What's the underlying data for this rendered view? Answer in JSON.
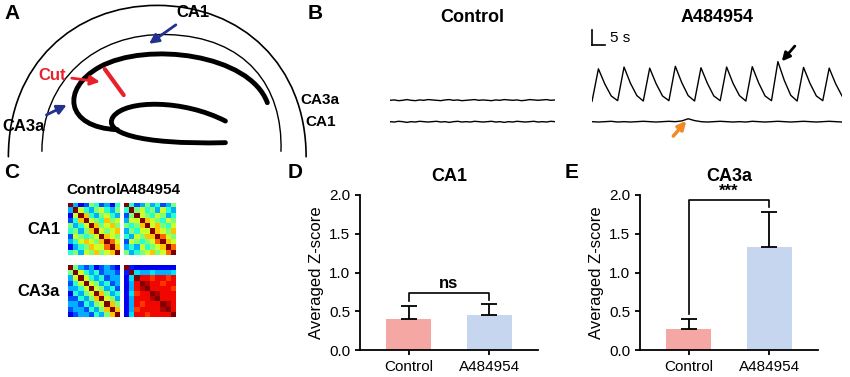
{
  "chart_data": [
    {
      "type": "diagram",
      "label": "A",
      "texts": {
        "cut": "Cut",
        "top_region": "CA1",
        "side_region": "CA3a"
      }
    },
    {
      "type": "line",
      "label": "B",
      "columns": [
        "Control",
        "A484954"
      ],
      "rows": [
        "CA3a",
        "CA1"
      ],
      "x": [
        0,
        2.5,
        5,
        7.5,
        10,
        12.5,
        15,
        17.5,
        20,
        22.5,
        25,
        27.5,
        30,
        32.5,
        35,
        37.5,
        40,
        42.5,
        45,
        47.5,
        50,
        52.5,
        55,
        57.5,
        60,
        62.5,
        65,
        67.5,
        70,
        72.5,
        75,
        77.5,
        80,
        82.5,
        85,
        87.5,
        90,
        92.5,
        95,
        97.5
      ],
      "series": [
        {
          "row": "CA3a",
          "column": "Control",
          "values": [
            0.03,
            0.04,
            0.02,
            0.03,
            0.05,
            0.03,
            0.02,
            0.04,
            0.03,
            0.05,
            0.04,
            0.03,
            0.02,
            0.04,
            0.05,
            0.03,
            0.04,
            0.02,
            0.03,
            0.04,
            0.05,
            0.03,
            0.04,
            0.03,
            0.02,
            0.04,
            0.03,
            0.05,
            0.04,
            0.03,
            0.04,
            0.02,
            0.03,
            0.05,
            0.04,
            0.03,
            0.04,
            0.05,
            0.03,
            0.04
          ]
        },
        {
          "row": "CA3a",
          "column": "A484954",
          "values": [
            0.0,
            0.9,
            0.48,
            0.15,
            0.02,
            0.95,
            0.5,
            0.16,
            0.01,
            0.92,
            0.49,
            0.15,
            0.02,
            0.97,
            0.52,
            0.16,
            0.01,
            0.93,
            0.5,
            0.15,
            0.02,
            0.95,
            0.5,
            0.16,
            0.01,
            0.96,
            0.51,
            0.15,
            0.02,
            1.1,
            0.58,
            0.17,
            0.01,
            0.94,
            0.5,
            0.15,
            0.02,
            0.92,
            0.49,
            0.15
          ]
        },
        {
          "row": "CA1",
          "column": "Control",
          "values": [
            0.02,
            0.01,
            0.03,
            0.02,
            0.0,
            0.02,
            0.01,
            0.03,
            0.02,
            0.01,
            0.02,
            0.03,
            0.01,
            0.02,
            0.0,
            0.02,
            0.03,
            0.01,
            0.02,
            0.01,
            0.03,
            0.02,
            0.01,
            0.02,
            0.03,
            0.01,
            0.02,
            0.0,
            0.02,
            0.01,
            0.03,
            0.02,
            0.01,
            0.02,
            0.03,
            0.01,
            0.02,
            0.01,
            0.03,
            0.02
          ]
        },
        {
          "row": "CA1",
          "column": "A484954",
          "values": [
            0.02,
            0.01,
            0.02,
            0.03,
            0.01,
            0.02,
            0.01,
            0.02,
            0.03,
            0.02,
            0.01,
            0.02,
            0.03,
            0.02,
            0.04,
            0.1,
            0.05,
            0.02,
            0.01,
            0.02,
            0.03,
            0.02,
            0.01,
            0.02,
            0.01,
            0.03,
            0.02,
            0.01,
            0.02,
            0.03,
            0.02,
            0.01,
            0.02,
            0.03,
            0.02,
            0.01,
            0.02,
            0.03,
            0.02,
            0.01
          ]
        }
      ],
      "color": "#000000",
      "xlim": [
        0,
        97.5
      ],
      "ylim": [
        -0.1,
        1.2
      ],
      "tick_labels": false,
      "scale_bar": {
        "value": 5,
        "label": "5 s"
      }
    },
    {
      "type": "heatmap",
      "label": "C",
      "columns": [
        "Control",
        "A484954"
      ],
      "rows": [
        "CA1",
        "CA3a"
      ],
      "color_range": [
        0,
        1
      ],
      "cells": [
        [
          [
            [
              1,
              0.3,
              0.1,
              0.2,
              0.5,
              0.4,
              0.2,
              0.3,
              0.1,
              0.4
            ],
            [
              0.3,
              1,
              0.6,
              0.4,
              0.3,
              0.5,
              0.6,
              0.4,
              0.3,
              0.5
            ],
            [
              0.1,
              0.6,
              1,
              0.7,
              0.4,
              0.3,
              0.5,
              0.6,
              0.4,
              0.3
            ],
            [
              0.2,
              0.4,
              0.7,
              1,
              0.6,
              0.5,
              0.4,
              0.7,
              0.5,
              0.6
            ],
            [
              0.5,
              0.3,
              0.4,
              0.6,
              1,
              0.7,
              0.5,
              0.6,
              0.7,
              0.5
            ],
            [
              0.4,
              0.5,
              0.3,
              0.5,
              0.7,
              1,
              0.6,
              0.5,
              0.6,
              0.7
            ],
            [
              0.2,
              0.6,
              0.5,
              0.4,
              0.5,
              0.6,
              1,
              0.7,
              0.6,
              0.5
            ],
            [
              0.3,
              0.4,
              0.6,
              0.7,
              0.6,
              0.5,
              0.7,
              1,
              0.8,
              0.6
            ],
            [
              0.1,
              0.3,
              0.4,
              0.5,
              0.7,
              0.6,
              0.6,
              0.8,
              1,
              0.7
            ],
            [
              0.4,
              0.5,
              0.3,
              0.6,
              0.5,
              0.7,
              0.5,
              0.6,
              0.7,
              1
            ]
          ],
          [
            [
              1,
              0.4,
              0.2,
              0.3,
              0.5,
              0.3,
              0.4,
              0.2,
              0.3,
              0.5
            ],
            [
              0.4,
              1,
              0.5,
              0.6,
              0.4,
              0.5,
              0.3,
              0.6,
              0.4,
              0.3
            ],
            [
              0.2,
              0.5,
              1,
              0.6,
              0.5,
              0.4,
              0.6,
              0.5,
              0.3,
              0.4
            ],
            [
              0.3,
              0.6,
              0.6,
              1,
              0.7,
              0.6,
              0.5,
              0.4,
              0.6,
              0.5
            ],
            [
              0.5,
              0.4,
              0.5,
              0.7,
              1,
              0.6,
              0.7,
              0.5,
              0.4,
              0.6
            ],
            [
              0.3,
              0.5,
              0.4,
              0.6,
              0.6,
              1,
              0.7,
              0.6,
              0.5,
              0.7
            ],
            [
              0.4,
              0.3,
              0.6,
              0.5,
              0.7,
              0.7,
              1,
              0.8,
              0.6,
              0.5
            ],
            [
              0.2,
              0.6,
              0.5,
              0.4,
              0.5,
              0.6,
              0.8,
              1,
              0.7,
              0.6
            ],
            [
              0.3,
              0.4,
              0.3,
              0.6,
              0.4,
              0.5,
              0.6,
              0.7,
              1,
              0.8
            ],
            [
              0.5,
              0.3,
              0.4,
              0.5,
              0.6,
              0.7,
              0.5,
              0.6,
              0.8,
              1
            ]
          ]
        ],
        [
          [
            [
              1,
              0.5,
              0.3,
              0.2,
              0.3,
              0.1,
              0.2,
              0.3,
              0.2,
              0.1
            ],
            [
              0.5,
              1,
              0.6,
              0.4,
              0.3,
              0.4,
              0.2,
              0.3,
              0.3,
              0.2
            ],
            [
              0.3,
              0.6,
              1,
              0.6,
              0.4,
              0.3,
              0.4,
              0.2,
              0.3,
              0.3
            ],
            [
              0.2,
              0.4,
              0.6,
              1,
              0.6,
              0.5,
              0.3,
              0.4,
              0.2,
              0.3
            ],
            [
              0.3,
              0.3,
              0.4,
              0.6,
              1,
              0.6,
              0.5,
              0.3,
              0.4,
              0.2
            ],
            [
              0.1,
              0.4,
              0.3,
              0.5,
              0.6,
              1,
              0.7,
              0.5,
              0.3,
              0.4
            ],
            [
              0.2,
              0.2,
              0.4,
              0.3,
              0.5,
              0.7,
              1,
              0.6,
              0.5,
              0.3
            ],
            [
              0.3,
              0.3,
              0.2,
              0.4,
              0.3,
              0.5,
              0.6,
              1,
              0.7,
              0.5
            ],
            [
              0.2,
              0.3,
              0.3,
              0.2,
              0.4,
              0.3,
              0.5,
              0.7,
              1,
              0.7
            ],
            [
              0.1,
              0.2,
              0.3,
              0.3,
              0.2,
              0.4,
              0.3,
              0.5,
              0.7,
              1
            ]
          ],
          [
            [
              1,
              0.15,
              0.1,
              0.1,
              0.1,
              0.1,
              0.1,
              0.1,
              0.1,
              0.1
            ],
            [
              0.15,
              1,
              0.35,
              0.3,
              0.3,
              0.35,
              0.3,
              0.3,
              0.3,
              0.35
            ],
            [
              0.1,
              0.35,
              1,
              0.9,
              0.9,
              0.85,
              0.9,
              0.9,
              0.85,
              0.9
            ],
            [
              0.1,
              0.3,
              0.9,
              1,
              0.95,
              0.9,
              0.9,
              0.85,
              0.9,
              0.9
            ],
            [
              0.1,
              0.3,
              0.9,
              0.95,
              1,
              0.9,
              0.9,
              0.9,
              0.9,
              0.85
            ],
            [
              0.1,
              0.35,
              0.85,
              0.9,
              0.9,
              1,
              0.95,
              0.9,
              0.9,
              0.9
            ],
            [
              0.1,
              0.3,
              0.9,
              0.9,
              0.9,
              0.95,
              1,
              0.9,
              0.9,
              0.9
            ],
            [
              0.1,
              0.3,
              0.9,
              0.85,
              0.9,
              0.9,
              0.9,
              1,
              0.95,
              0.9
            ],
            [
              0.1,
              0.3,
              0.85,
              0.9,
              0.9,
              0.9,
              0.9,
              0.95,
              1,
              0.9
            ],
            [
              0.1,
              0.35,
              0.9,
              0.9,
              0.85,
              0.9,
              0.9,
              0.9,
              0.9,
              1
            ]
          ]
        ]
      ]
    },
    {
      "type": "bar",
      "label": "D",
      "title": "CA1",
      "categories": [
        "Control",
        "A484954"
      ],
      "values": [
        0.4,
        0.45
      ],
      "errors": [
        0.17,
        0.14
      ],
      "colors": [
        "#f4a7a3",
        "#c6d6ef"
      ],
      "ylabel": "Averaged Z-score",
      "ylim": [
        0,
        2.0
      ],
      "yticks": [
        {
          "value": 0,
          "label": "0.0"
        },
        {
          "value": 0.5,
          "label": "0.5"
        },
        {
          "value": 1.0,
          "label": "1.0"
        },
        {
          "value": 1.5,
          "label": "1.5"
        },
        {
          "value": 2.0,
          "label": "2.0"
        }
      ],
      "significance": "ns"
    },
    {
      "type": "bar",
      "label": "E",
      "title": "CA3a",
      "categories": [
        "Control",
        "A484954"
      ],
      "values": [
        0.27,
        1.33
      ],
      "errors": [
        0.13,
        0.45
      ],
      "colors": [
        "#f4a7a3",
        "#c6d6ef"
      ],
      "ylabel": "Averaged Z-score",
      "ylim": [
        0,
        2.0
      ],
      "yticks": [
        {
          "value": 0,
          "label": "0.0"
        },
        {
          "value": 0.5,
          "label": "0.5"
        },
        {
          "value": 1.0,
          "label": "1.0"
        },
        {
          "value": 1.5,
          "label": "1.5"
        },
        {
          "value": 2.0,
          "label": "2.0"
        }
      ],
      "significance": "***"
    }
  ]
}
